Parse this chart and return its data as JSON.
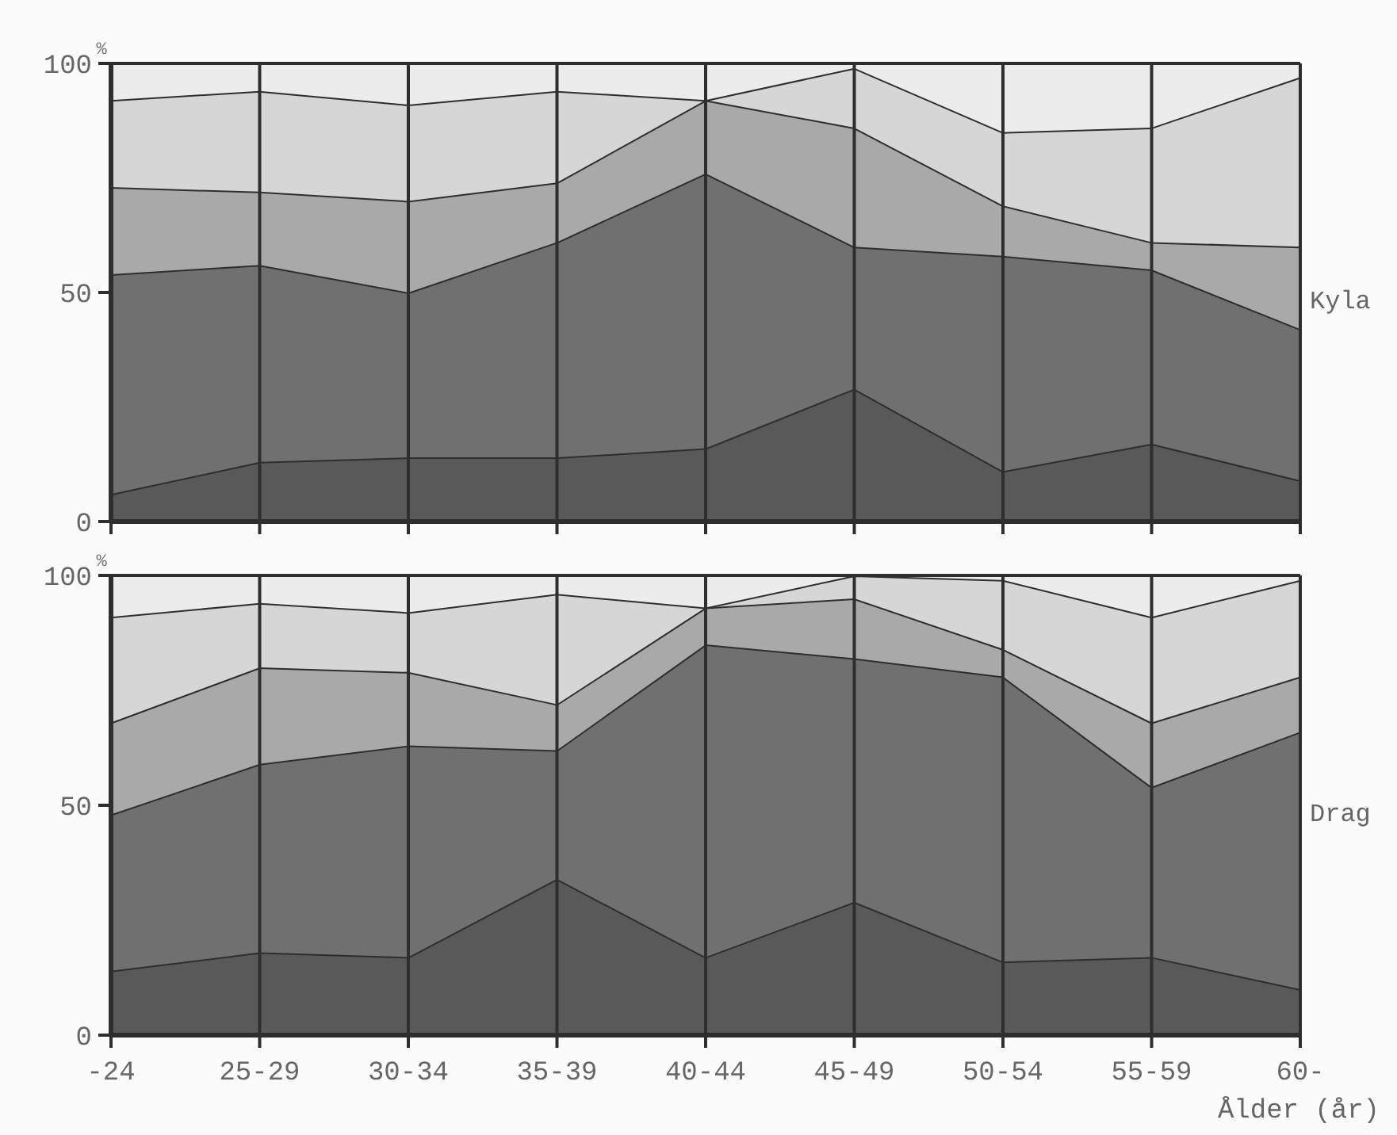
{
  "chart_data": [
    {
      "type": "area",
      "stacked": true,
      "title": "Kyla",
      "ylabel": "%",
      "categories": [
        null,
        null,
        null,
        null,
        null,
        null,
        null,
        null,
        null
      ],
      "ylim": [
        0,
        100
      ],
      "yticks": [
        0,
        50,
        100
      ],
      "grid": "x",
      "tick_labels": "y",
      "series": [
        {
          "color": "#595959",
          "values": [
            6,
            13,
            14,
            14,
            16,
            29,
            11,
            17,
            9
          ]
        },
        {
          "color": "#707070",
          "values": [
            48,
            43,
            36,
            47,
            60,
            31,
            47,
            38,
            33
          ]
        },
        {
          "color": "#a9a9a9",
          "values": [
            19,
            16,
            20,
            13,
            16,
            26,
            11,
            6,
            18
          ]
        },
        {
          "color": "#d6d6d6",
          "values": [
            19,
            22,
            21,
            20,
            0,
            13,
            16,
            25,
            37
          ]
        },
        {
          "color": "#ececec",
          "values": [
            8,
            6,
            9,
            6,
            8,
            1,
            15,
            14,
            3
          ]
        }
      ]
    },
    {
      "type": "area",
      "stacked": true,
      "title": "Drag",
      "ylabel": "%",
      "xlabel": "Ålder (år)",
      "categories": [
        "-24",
        "25-29",
        "30-34",
        "35-39",
        "40-44",
        "45-49",
        "50-54",
        "55-59",
        "60-"
      ],
      "ylim": [
        0,
        100
      ],
      "yticks": [
        0,
        50,
        100
      ],
      "grid": "x",
      "series": [
        {
          "color": "#595959",
          "values": [
            14,
            18,
            17,
            34,
            17,
            29,
            16,
            17,
            10
          ]
        },
        {
          "color": "#707070",
          "values": [
            34,
            41,
            46,
            28,
            68,
            53,
            62,
            37,
            56
          ]
        },
        {
          "color": "#a9a9a9",
          "values": [
            20,
            21,
            16,
            10,
            8,
            13,
            6,
            14,
            12
          ]
        },
        {
          "color": "#d6d6d6",
          "values": [
            23,
            14,
            13,
            24,
            0,
            5,
            15,
            23,
            21
          ]
        },
        {
          "color": "#ececec",
          "values": [
            9,
            6,
            8,
            4,
            7,
            0,
            1,
            9,
            1
          ]
        }
      ]
    }
  ]
}
